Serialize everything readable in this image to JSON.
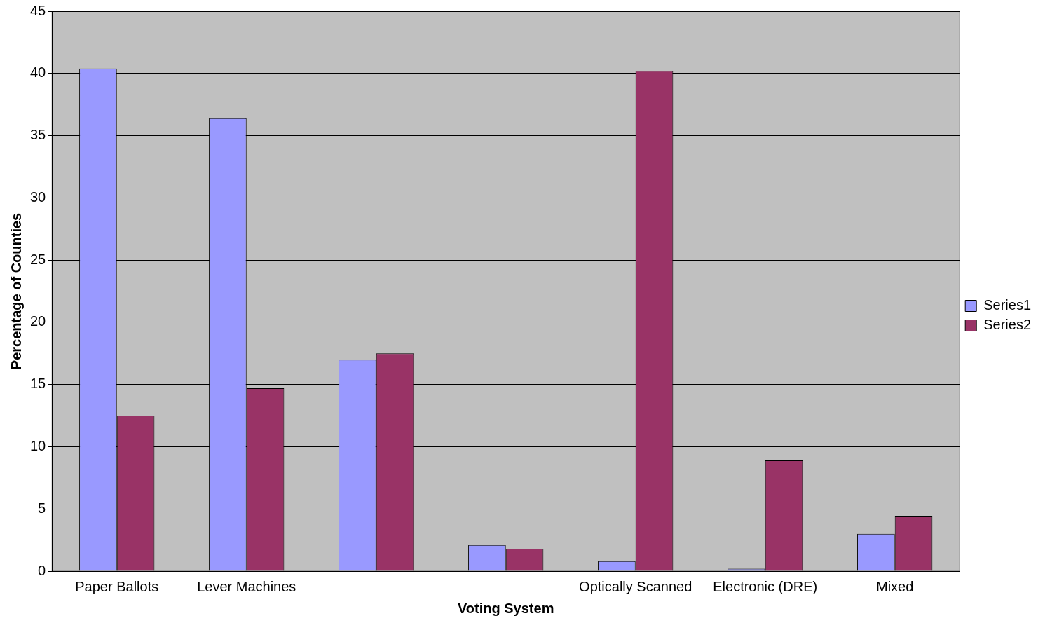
{
  "chart_data": {
    "type": "bar",
    "xlabel": "Voting System",
    "ylabel": "Percentage of Counties",
    "categories": [
      "Paper Ballots",
      "Lever Machines",
      null,
      null,
      "Optically Scanned",
      "Electronic (DRE)",
      "Mixed"
    ],
    "series": [
      {
        "name": "Series1",
        "color": "#9999ff",
        "values": [
          40.4,
          36.4,
          17.0,
          2.1,
          0.8,
          0.2,
          3.0
        ]
      },
      {
        "name": "Series2",
        "color": "#993366",
        "values": [
          12.5,
          14.7,
          17.5,
          1.8,
          40.2,
          8.9,
          4.4
        ]
      }
    ],
    "ylim": [
      0,
      45
    ],
    "yticks": [
      0,
      5,
      10,
      15,
      20,
      25,
      30,
      35,
      40,
      45
    ],
    "grid": "y",
    "legend": "right"
  }
}
